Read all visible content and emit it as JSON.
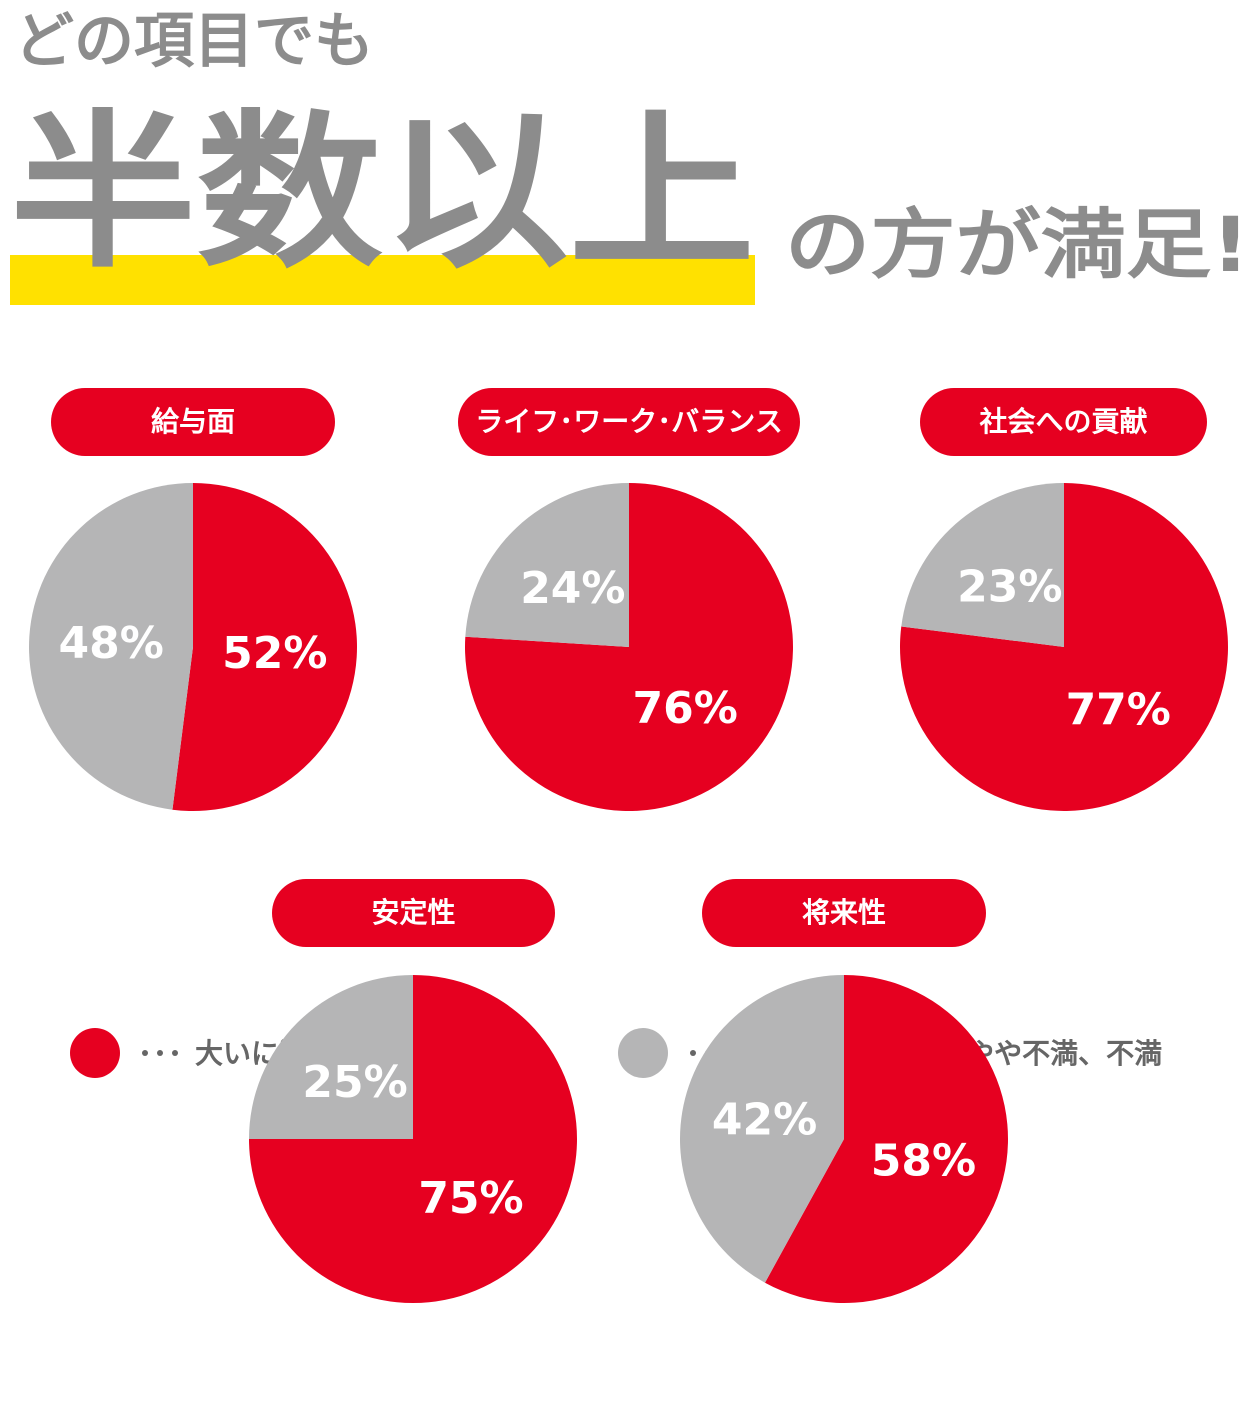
{
  "header": {
    "lead": "どの項目でも",
    "highlight": "半数以上",
    "tail": "の方が満足!"
  },
  "legend": [
    {
      "label": "大いに満足、まあまあ満足",
      "color": "#e60020"
    },
    {
      "label": "どちらでもない、やや不満、不満",
      "color": "#b5b5b6"
    }
  ],
  "chart_data": [
    {
      "type": "pie",
      "title": "給与面",
      "values": [
        52,
        48
      ],
      "value_labels": [
        "52%",
        "48%"
      ]
    },
    {
      "type": "pie",
      "title": "ライフ･ワーク･バランス",
      "values": [
        76,
        24
      ],
      "value_labels": [
        "76%",
        "24%"
      ]
    },
    {
      "type": "pie",
      "title": "社会への貢献",
      "values": [
        77,
        23
      ],
      "value_labels": [
        "77%",
        "23%"
      ]
    },
    {
      "type": "pie",
      "title": "安定性",
      "values": [
        75,
        25
      ],
      "value_labels": [
        "75%",
        "25%"
      ]
    },
    {
      "type": "pie",
      "title": "将来性",
      "values": [
        58,
        42
      ],
      "value_labels": [
        "58%",
        "42%"
      ]
    }
  ]
}
